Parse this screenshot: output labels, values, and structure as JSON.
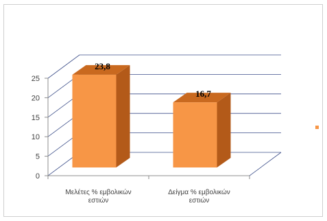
{
  "chart_data": {
    "type": "bar",
    "style": "3d-column",
    "categories": [
      [
        "Μελέτες % εμβολικών",
        "εστιών"
      ],
      [
        "Δείγμα % εμβολικών",
        "εστιών"
      ]
    ],
    "values": [
      23.8,
      16.7
    ],
    "data_labels": [
      "23,8",
      "16,7"
    ],
    "yticks": [
      "0",
      "5",
      "10",
      "15",
      "20",
      "25"
    ],
    "ylim": [
      0,
      25
    ],
    "grid": true,
    "legend": "right",
    "colors": {
      "bar_front": "#f79646",
      "bar_side": "#b35a19",
      "bar_top": "#c9691f",
      "gridline": "#3d4f8a",
      "axis": "#8c8c8c",
      "legend_marker": "#f79646"
    }
  }
}
